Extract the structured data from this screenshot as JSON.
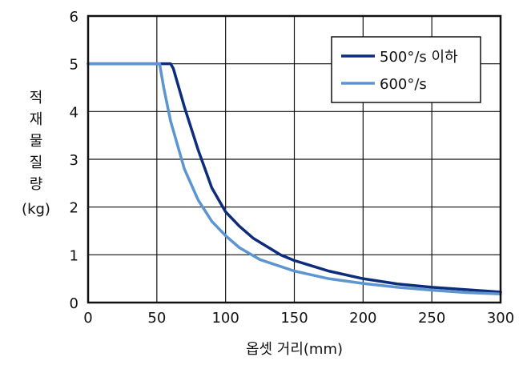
{
  "chart_data": {
    "type": "line",
    "title": "",
    "xlabel": "옵셋 거리(mm)",
    "ylabel": "적재물 질량",
    "ylabel_unit": "(kg)",
    "xlim": [
      0,
      300
    ],
    "ylim": [
      0,
      6
    ],
    "xticks": [
      0,
      50,
      100,
      150,
      200,
      250,
      300
    ],
    "yticks": [
      0,
      1,
      2,
      3,
      4,
      5,
      6
    ],
    "xtick_labels": [
      "0",
      "50",
      "100",
      "150",
      "200",
      "250",
      "300"
    ],
    "ytick_labels": [
      "0",
      "1",
      "2",
      "3",
      "4",
      "5",
      "6"
    ],
    "grid": true,
    "legend_position": "top-right",
    "series": [
      {
        "name": "500°/s 이하",
        "color": "#0d2c7c",
        "x": [
          0,
          60,
          62,
          70,
          80,
          90,
          100,
          110,
          120,
          140,
          150,
          175,
          200,
          225,
          250,
          275,
          300
        ],
        "y": [
          5,
          5,
          4.9,
          4.1,
          3.2,
          2.4,
          1.9,
          1.6,
          1.35,
          1.0,
          0.88,
          0.66,
          0.5,
          0.39,
          0.32,
          0.27,
          0.22
        ]
      },
      {
        "name": "600°/s",
        "color": "#5c95cf",
        "x": [
          0,
          52,
          55,
          60,
          70,
          80,
          90,
          100,
          110,
          125,
          150,
          175,
          200,
          225,
          250,
          275,
          300
        ],
        "y": [
          5,
          5,
          4.5,
          3.8,
          2.8,
          2.15,
          1.7,
          1.4,
          1.15,
          0.9,
          0.66,
          0.5,
          0.4,
          0.32,
          0.26,
          0.21,
          0.18
        ]
      }
    ]
  }
}
